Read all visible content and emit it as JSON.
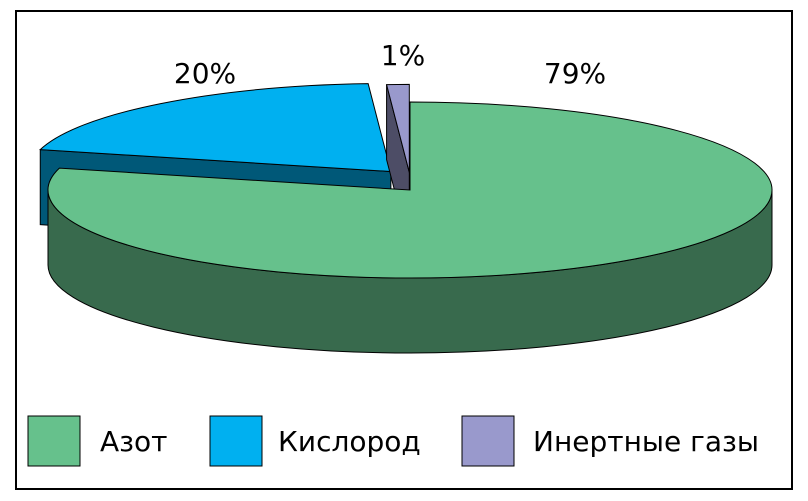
{
  "chart_data": {
    "type": "pie3d",
    "categories": [
      "Азот",
      "Кислород",
      "Инертные газы"
    ],
    "values": [
      79,
      20,
      1
    ],
    "value_labels": [
      "79%",
      "20%",
      "1%"
    ],
    "colors": [
      "#66c18c",
      "#00b0f0",
      "#9999cc"
    ],
    "legend": "bottom"
  }
}
